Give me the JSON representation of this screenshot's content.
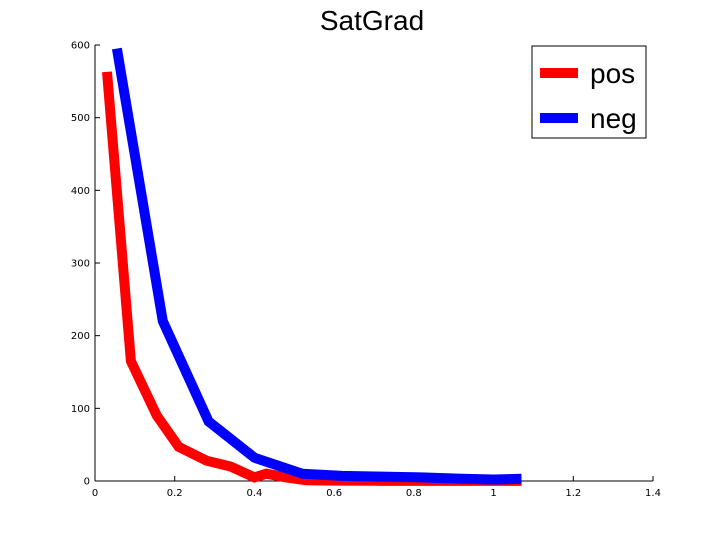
{
  "chart_data": {
    "type": "line",
    "title": "SatGrad",
    "xlabel": "",
    "ylabel": "",
    "xlim": [
      0,
      1.4
    ],
    "ylim": [
      0,
      600
    ],
    "xticks": [
      "0",
      "0.2",
      "0.4",
      "0.6",
      "0.8",
      "1",
      "1.2",
      "1.4"
    ],
    "yticks": [
      "0",
      "100",
      "200",
      "300",
      "400",
      "500",
      "600"
    ],
    "grid": false,
    "legend_position": "top-right",
    "series": [
      {
        "name": "pos",
        "color": "#ff0000",
        "x": [
          0.03,
          0.09,
          0.155,
          0.21,
          0.28,
          0.34,
          0.4,
          0.43,
          0.48,
          0.53,
          0.6,
          0.7,
          0.8,
          0.9,
          1.0,
          1.07
        ],
        "y": [
          563,
          165,
          90,
          47,
          28,
          20,
          5,
          10,
          5,
          1,
          0.5,
          0.3,
          0.2,
          0.2,
          0.1,
          0.1
        ]
      },
      {
        "name": "neg",
        "color": "#0000ff",
        "x": [
          0.055,
          0.17,
          0.285,
          0.4,
          0.52,
          0.62,
          0.72,
          0.82,
          0.92,
          1.0,
          1.07
        ],
        "y": [
          595,
          220,
          82,
          32,
          10,
          7,
          6,
          5,
          3,
          2,
          3
        ]
      }
    ]
  }
}
